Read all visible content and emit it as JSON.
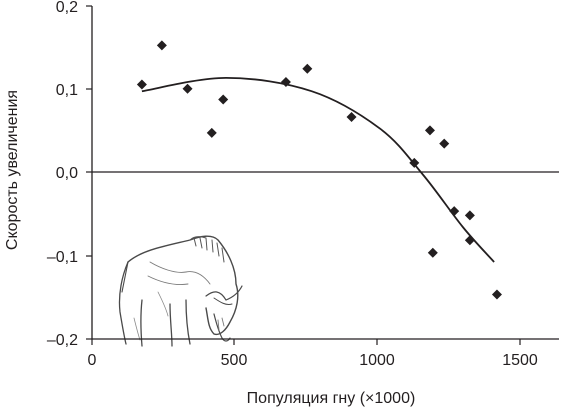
{
  "chart_data": {
    "type": "scatter",
    "title": "",
    "xlabel": "Популяция гну (×1000)",
    "ylabel": "Скорость увеличения",
    "xlim": [
      0,
      1650
    ],
    "ylim": [
      -0.2,
      0.2
    ],
    "x_ticks": [
      0,
      500,
      1000,
      1500
    ],
    "x_tick_labels": [
      "0",
      "500",
      "1000",
      "1500"
    ],
    "y_ticks": [
      -0.2,
      -0.1,
      0.0,
      0.1,
      0.2
    ],
    "y_tick_labels": [
      "–0,2",
      "–0,1",
      "0,0",
      "0,1",
      "0,2"
    ],
    "grid": false,
    "zero_line": true,
    "marker": "diamond",
    "series": [
      {
        "points": [
          {
            "x": 175,
            "y": 0.105
          },
          {
            "x": 245,
            "y": 0.152
          },
          {
            "x": 335,
            "y": 0.1
          },
          {
            "x": 420,
            "y": 0.047
          },
          {
            "x": 460,
            "y": 0.087
          },
          {
            "x": 680,
            "y": 0.108
          },
          {
            "x": 755,
            "y": 0.124
          },
          {
            "x": 910,
            "y": 0.066
          },
          {
            "x": 1130,
            "y": 0.011
          },
          {
            "x": 1185,
            "y": 0.05
          },
          {
            "x": 1235,
            "y": 0.034
          },
          {
            "x": 1270,
            "y": -0.047
          },
          {
            "x": 1195,
            "y": -0.097
          },
          {
            "x": 1325,
            "y": -0.052
          },
          {
            "x": 1325,
            "y": -0.082
          },
          {
            "x": 1420,
            "y": -0.147
          }
        ]
      }
    ],
    "trend_curve": {
      "type": "quadratic",
      "points": [
        {
          "x": 175,
          "y": 0.097
        },
        {
          "x": 470,
          "y": 0.113
        },
        {
          "x": 770,
          "y": 0.097
        },
        {
          "x": 1010,
          "y": 0.052
        },
        {
          "x": 1160,
          "y": -0.003
        },
        {
          "x": 1300,
          "y": -0.066
        },
        {
          "x": 1410,
          "y": -0.108
        }
      ]
    },
    "illustration": "wildebeest-illustration"
  }
}
